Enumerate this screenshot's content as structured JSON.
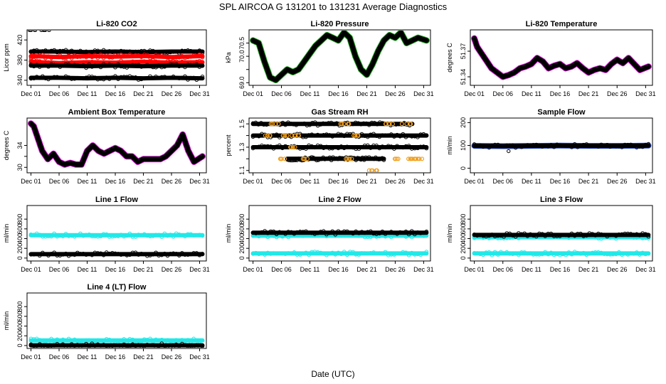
{
  "title": "SPL   AIRCOA G   131201 to 131231   Average Diagnostics",
  "x_label": "Date (UTC)",
  "colors": {
    "black": "#000000",
    "red": "#ff0000",
    "magenta": "#e020e0",
    "green": "#22aa22",
    "blue": "#1f3fbf",
    "cyan": "#22e8e8",
    "orange": "#f0a020"
  },
  "chart_data": [
    {
      "type": "scatter",
      "title": "Li-820 CO2",
      "ylabel": "Licor ppm",
      "ylim": [
        330,
        440
      ],
      "yticks": [
        340,
        380,
        420
      ],
      "xticks": [
        "Dec 01",
        "Dec 06",
        "Dec 11",
        "Dec 16",
        "Dec 21",
        "Dec 26",
        "Dec 31"
      ],
      "series": [
        {
          "name": "cal 1",
          "color": "black",
          "x": [
            1,
            3.5
          ],
          "y": [
            440,
            440
          ]
        },
        {
          "name": "high",
          "color": "black",
          "x": [
            1,
            6,
            11,
            16,
            21,
            26,
            31.5
          ],
          "y": [
            397,
            397,
            396,
            397,
            396,
            397,
            397
          ]
        },
        {
          "name": "mid",
          "color": "red",
          "x": [
            1,
            6,
            11,
            16,
            21,
            26,
            31.5
          ],
          "y": [
            388,
            386,
            388,
            387,
            388,
            386,
            388
          ]
        },
        {
          "name": "mid2",
          "color": "red",
          "x": [
            1,
            6,
            11,
            16,
            21,
            26,
            31.5
          ],
          "y": [
            377,
            374,
            376,
            375,
            377,
            375,
            376
          ]
        },
        {
          "name": "low",
          "color": "black",
          "x": [
            1,
            6,
            11,
            16,
            21,
            26,
            31.5
          ],
          "y": [
            369,
            369,
            368,
            369,
            368,
            369,
            369
          ]
        },
        {
          "name": "bottom",
          "color": "black",
          "x": [
            1,
            6,
            11,
            16,
            21,
            26,
            31.5
          ],
          "y": [
            345,
            345,
            344,
            345,
            344,
            345,
            344
          ]
        }
      ]
    },
    {
      "type": "line",
      "title": "Li-820 Pressure",
      "ylabel": "kPa",
      "ylim": [
        68.9,
        71.0
      ],
      "yticks": [
        69.0,
        69.5,
        70.0,
        70.5
      ],
      "ytick_labels": [
        "69.0",
        "",
        "70.0",
        "70.5"
      ],
      "xticks": [
        "Dec 01",
        "Dec 06",
        "Dec 11",
        "Dec 16",
        "Dec 21",
        "Dec 26",
        "Dec 31"
      ],
      "series": [
        {
          "name": "pressure",
          "color": "black",
          "edge": "green",
          "x": [
            1,
            2,
            3,
            4,
            5,
            6,
            7,
            8,
            9,
            10,
            11,
            12,
            13,
            14,
            15,
            16,
            17,
            18,
            19,
            20,
            21,
            22,
            23,
            24,
            25,
            26,
            27,
            28,
            29,
            30,
            31.5
          ],
          "y": [
            70.6,
            70.5,
            69.8,
            69.2,
            69.1,
            69.3,
            69.5,
            69.4,
            69.5,
            69.8,
            70.1,
            70.4,
            70.6,
            70.8,
            70.7,
            70.6,
            70.9,
            70.7,
            70.0,
            69.5,
            69.3,
            69.7,
            70.2,
            70.6,
            70.8,
            70.7,
            70.9,
            70.5,
            70.6,
            70.7,
            70.6
          ]
        }
      ]
    },
    {
      "type": "line",
      "title": "Li-820 Temperature",
      "ylabel": "degrees C",
      "ylim": [
        51.33,
        51.395
      ],
      "yticks": [
        51.34,
        51.37
      ],
      "ytick_labels": [
        "51.34",
        "51.37"
      ],
      "xticks": [
        "Dec 01",
        "Dec 06",
        "Dec 11",
        "Dec 16",
        "Dec 21",
        "Dec 26",
        "Dec 31"
      ],
      "series": [
        {
          "name": "temperature",
          "color": "black",
          "edge": "magenta",
          "x": [
            1,
            1.5,
            2,
            3,
            4,
            5,
            6,
            7,
            8,
            9,
            10,
            11,
            12,
            13,
            14,
            15,
            16,
            17,
            18,
            19,
            20,
            21,
            22,
            23,
            24,
            25,
            26,
            27,
            28,
            29,
            30,
            31.5
          ],
          "y": [
            51.385,
            51.375,
            51.37,
            51.36,
            51.35,
            51.345,
            51.34,
            51.342,
            51.345,
            51.35,
            51.352,
            51.355,
            51.362,
            51.358,
            51.35,
            51.353,
            51.355,
            51.35,
            51.352,
            51.356,
            51.35,
            51.345,
            51.348,
            51.35,
            51.348,
            51.355,
            51.36,
            51.356,
            51.362,
            51.355,
            51.348,
            51.352
          ]
        }
      ]
    },
    {
      "type": "line",
      "title": "Ambient Box Temperature",
      "ylabel": "degrees C",
      "ylim": [
        29,
        39
      ],
      "yticks": [
        30,
        32,
        34
      ],
      "ytick_labels": [
        "30",
        "",
        "34"
      ],
      "xticks": [
        "Dec 01",
        "Dec 06",
        "Dec 11",
        "Dec 16",
        "Dec 21",
        "Dec 26",
        "Dec 31"
      ],
      "series": [
        {
          "name": "box temp",
          "color": "black",
          "edge": "magenta",
          "x": [
            1,
            1.5,
            2,
            3,
            4,
            5,
            6,
            7,
            8,
            9,
            10,
            11,
            12,
            13,
            14,
            15,
            16,
            17,
            18,
            19,
            20,
            21,
            22,
            23,
            24,
            25,
            26,
            27,
            28,
            29,
            30,
            31.5
          ],
          "y": [
            38,
            37.5,
            36,
            33,
            31.5,
            32.5,
            31,
            30.5,
            30.8,
            30.5,
            30.5,
            33,
            34,
            33,
            32.5,
            33,
            33.5,
            33,
            32,
            32,
            31,
            31.5,
            31.5,
            31.5,
            31.5,
            32,
            33,
            34,
            36,
            33,
            31,
            32
          ]
        }
      ]
    },
    {
      "type": "scatter",
      "title": "Gas Stream RH",
      "ylabel": "percent",
      "ylim": [
        1.08,
        1.55
      ],
      "yticks": [
        1.1,
        1.2,
        1.3,
        1.4,
        1.5
      ],
      "ytick_labels": [
        "1.1",
        "",
        "1.3",
        "",
        "1.5"
      ],
      "xticks": [
        "Dec 01",
        "Dec 06",
        "Dec 11",
        "Dec 16",
        "Dec 21",
        "Dec 26",
        "Dec 31"
      ],
      "series": [
        {
          "name": "rh 1.4",
          "color": "black",
          "x": [
            1,
            31.5
          ],
          "y": [
            1.4,
            1.4
          ]
        },
        {
          "name": "rh 1.3",
          "color": "black",
          "x": [
            1,
            31.5
          ],
          "y": [
            1.3,
            1.3
          ]
        },
        {
          "name": "rh 1.5",
          "color": "black",
          "x": [
            1,
            4,
            15,
            20,
            25,
            29
          ],
          "y": [
            1.5,
            1.5,
            1.5,
            1.5,
            1.5,
            1.5
          ]
        },
        {
          "name": "rh 1.2",
          "color": "black",
          "x": [
            7,
            12,
            21,
            24
          ],
          "y": [
            1.2,
            1.2,
            1.2,
            1.2
          ]
        },
        {
          "name": "rh orange",
          "color": "orange",
          "x": [
            4,
            5,
            6,
            7,
            8,
            9,
            10,
            17,
            18,
            19,
            22,
            25,
            26,
            28,
            29,
            30
          ],
          "y": [
            1.4,
            1.5,
            1.2,
            1.4,
            1.3,
            1.4,
            1.2,
            1.5,
            1.2,
            1.4,
            1.1,
            1.5,
            1.2,
            1.5,
            1.2,
            1.2
          ]
        }
      ]
    },
    {
      "type": "scatter",
      "title": "Sample Flow",
      "ylabel": "ml/min",
      "ylim": [
        -20,
        220
      ],
      "yticks": [
        0,
        100,
        200
      ],
      "xticks": [
        "Dec 01",
        "Dec 06",
        "Dec 11",
        "Dec 16",
        "Dec 21",
        "Dec 26",
        "Dec 31"
      ],
      "series": [
        {
          "name": "sample flow",
          "color": "black",
          "edge": "blue",
          "x": [
            1,
            6,
            11,
            16,
            21,
            26,
            31.5
          ],
          "y": [
            98,
            97,
            98,
            99,
            98,
            98,
            99
          ]
        },
        {
          "name": "outlier",
          "color": "black",
          "x": [
            7
          ],
          "y": [
            75
          ]
        }
      ]
    },
    {
      "type": "scatter",
      "title": "Line 1 Flow",
      "ylabel": "ml/min",
      "ylim": [
        -60,
        1080
      ],
      "yticks": [
        0,
        200,
        400,
        600,
        800
      ],
      "xticks": [
        "Dec 01",
        "Dec 06",
        "Dec 11",
        "Dec 16",
        "Dec 21",
        "Dec 26",
        "Dec 31"
      ],
      "series": [
        {
          "name": "line 1 cyan",
          "color": "cyan",
          "x": [
            1,
            31.5
          ],
          "y": [
            470,
            470
          ]
        },
        {
          "name": "line 1 black",
          "color": "black",
          "x": [
            1,
            31.5
          ],
          "y": [
            80,
            80
          ]
        }
      ]
    },
    {
      "type": "scatter",
      "title": "Line 2 Flow",
      "ylabel": "ml/min",
      "ylim": [
        -60,
        1080
      ],
      "yticks": [
        0,
        200,
        400,
        600,
        800
      ],
      "xticks": [
        "Dec 01",
        "Dec 06",
        "Dec 11",
        "Dec 16",
        "Dec 21",
        "Dec 26",
        "Dec 31"
      ],
      "series": [
        {
          "name": "line 2 cyan",
          "color": "cyan",
          "x": [
            1,
            31.5
          ],
          "y": [
            460,
            460
          ]
        },
        {
          "name": "line 2 black",
          "color": "black",
          "x": [
            1,
            31.5
          ],
          "y": [
            520,
            520
          ]
        },
        {
          "name": "line 2 cyan low",
          "color": "cyan",
          "x": [
            1,
            31.5
          ],
          "y": [
            95,
            95
          ]
        }
      ]
    },
    {
      "type": "scatter",
      "title": "Line 3 Flow",
      "ylabel": "ml/min",
      "ylim": [
        -60,
        1080
      ],
      "yticks": [
        0,
        200,
        400,
        600,
        800
      ],
      "xticks": [
        "Dec 01",
        "Dec 06",
        "Dec 11",
        "Dec 16",
        "Dec 21",
        "Dec 26",
        "Dec 31"
      ],
      "series": [
        {
          "name": "line 3 cyan",
          "color": "cyan",
          "x": [
            1,
            31.5
          ],
          "y": [
            430,
            430
          ]
        },
        {
          "name": "line 3 black",
          "color": "black",
          "x": [
            1,
            31.5
          ],
          "y": [
            475,
            475
          ]
        },
        {
          "name": "line 3 cyan low",
          "color": "cyan",
          "x": [
            1,
            31.5
          ],
          "y": [
            95,
            95
          ]
        }
      ]
    },
    {
      "type": "scatter",
      "title": "Line 4 (LT) Flow",
      "ylabel": "ml/min",
      "ylim": [
        -60,
        1080
      ],
      "yticks": [
        0,
        200,
        400,
        600,
        800
      ],
      "xticks": [
        "Dec 01",
        "Dec 06",
        "Dec 11",
        "Dec 16",
        "Dec 21",
        "Dec 26",
        "Dec 31"
      ],
      "series": [
        {
          "name": "line 4 cyan",
          "color": "cyan",
          "x": [
            1,
            31.5
          ],
          "y": [
            105,
            105
          ]
        },
        {
          "name": "line 4 black",
          "color": "black",
          "x": [
            1,
            31.5
          ],
          "y": [
            5,
            5
          ]
        }
      ]
    }
  ]
}
